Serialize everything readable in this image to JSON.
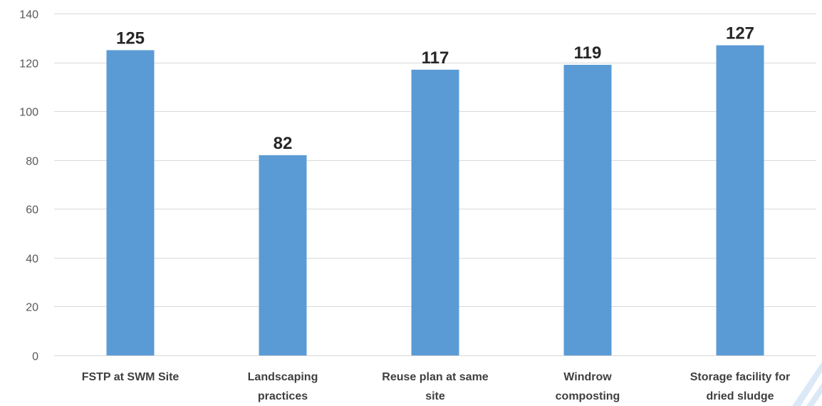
{
  "colors": {
    "bar": "#5b9bd5",
    "grid": "#d9d9d9",
    "axis_text": "#595959",
    "label_text": "#262626",
    "watermark": "#dbe9f7"
  },
  "chart_data": {
    "type": "bar",
    "categories": [
      [
        "FSTP at SWM Site"
      ],
      [
        "Landscaping",
        "practices"
      ],
      [
        "Reuse plan at same",
        "site"
      ],
      [
        "Windrow",
        "composting"
      ],
      [
        "Storage facility for",
        "dried sludge"
      ]
    ],
    "values": [
      125,
      82,
      117,
      119,
      127
    ],
    "ylim": [
      0,
      140
    ],
    "yticks": [
      0,
      20,
      40,
      60,
      80,
      100,
      120,
      140
    ],
    "grid": true,
    "data_labels": true,
    "legend": "none"
  }
}
